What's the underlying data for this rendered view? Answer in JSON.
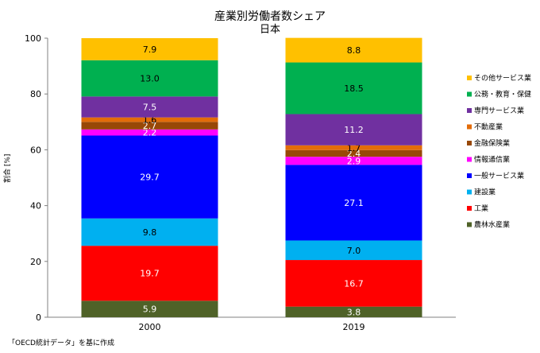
{
  "chart_data": {
    "type": "bar",
    "stacked": true,
    "title": "産業別労働者数シェア",
    "subtitle": "日本",
    "ylabel": "割合 [%]",
    "xlabel": "",
    "ylim": [
      0,
      100
    ],
    "yticks": [
      0,
      20,
      40,
      60,
      80,
      100
    ],
    "categories": [
      "2000",
      "2019"
    ],
    "series": [
      {
        "name": "農林水産業",
        "color": "#4f6228",
        "values": [
          5.9,
          3.8
        ]
      },
      {
        "name": "工業",
        "color": "#ff0000",
        "values": [
          19.7,
          16.7
        ]
      },
      {
        "name": "建設業",
        "color": "#00b0f0",
        "values": [
          9.8,
          7.0
        ]
      },
      {
        "name": "一般サービス業",
        "color": "#0000ff",
        "values": [
          29.7,
          27.1
        ]
      },
      {
        "name": "情報通信業",
        "color": "#ff00ff",
        "values": [
          2.2,
          2.9
        ]
      },
      {
        "name": "金融保険業",
        "color": "#984807",
        "values": [
          2.7,
          2.4
        ]
      },
      {
        "name": "不動産業",
        "color": "#e36c09",
        "values": [
          1.6,
          1.7
        ]
      },
      {
        "name": "専門サービス業",
        "color": "#7030a0",
        "values": [
          7.5,
          11.2
        ]
      },
      {
        "name": "公務・教育・保健",
        "color": "#00b050",
        "values": [
          13.0,
          18.5
        ]
      },
      {
        "name": "その他サービス業",
        "color": "#ffc000",
        "values": [
          7.9,
          8.8
        ]
      }
    ],
    "legend_position": "right",
    "grid": false
  },
  "source_note": "「OECD統計データ」を基に作成"
}
